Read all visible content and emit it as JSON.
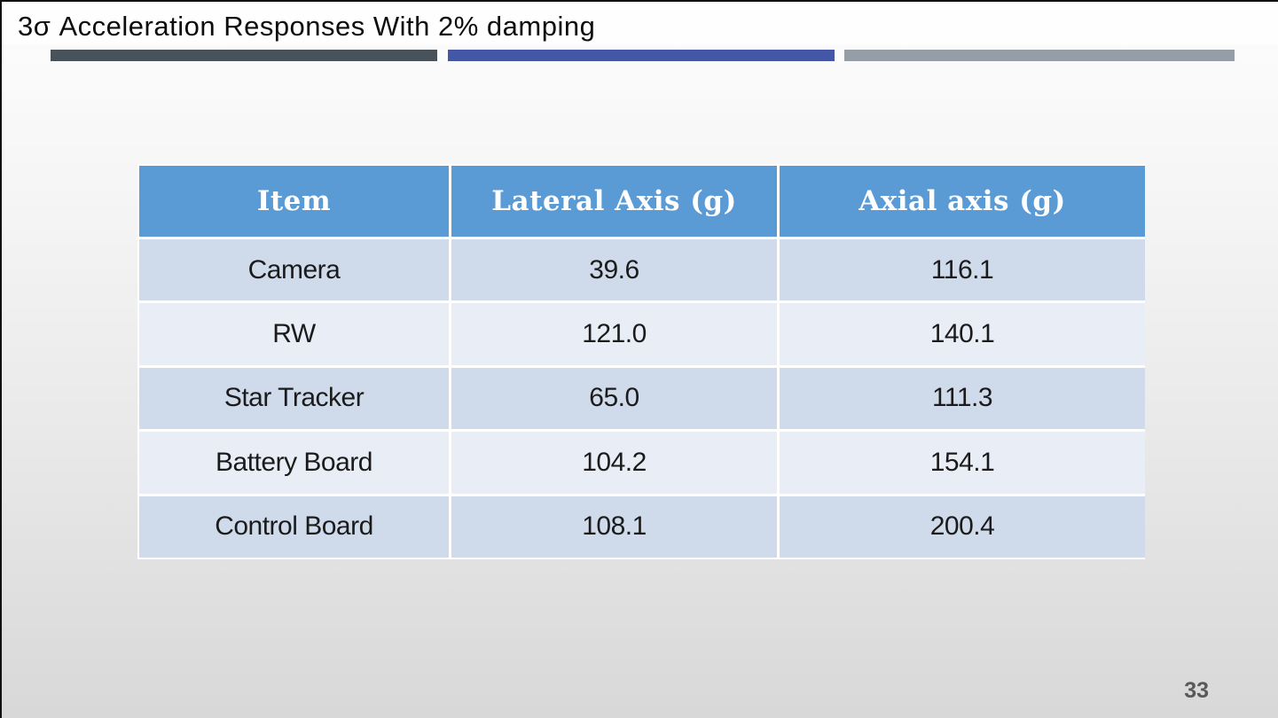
{
  "slide": {
    "title": "3σ Acceleration Responses With 2% damping",
    "page_number": "33",
    "accent_bars": {
      "bar1_color": "#47525a",
      "bar2_color": "#4456a6",
      "bar3_color": "#959ea7"
    }
  },
  "table": {
    "headers": [
      "Item",
      "Lateral Axis (g)",
      "Axial axis (g)"
    ],
    "rows": [
      {
        "item": "Camera",
        "lateral": "39.6",
        "axial": "116.1"
      },
      {
        "item": "RW",
        "lateral": "121.0",
        "axial": "140.1"
      },
      {
        "item": "Star Tracker",
        "lateral": "65.0",
        "axial": "111.3"
      },
      {
        "item": "Battery Board",
        "lateral": "104.2",
        "axial": "154.1"
      },
      {
        "item": "Control Board",
        "lateral": "108.1",
        "axial": "200.4"
      }
    ],
    "colors": {
      "header_bg": "#5b9bd5",
      "header_text": "#ffffff",
      "row_odd_bg": "#cfdbeb",
      "row_even_bg": "#e9eef6"
    }
  }
}
